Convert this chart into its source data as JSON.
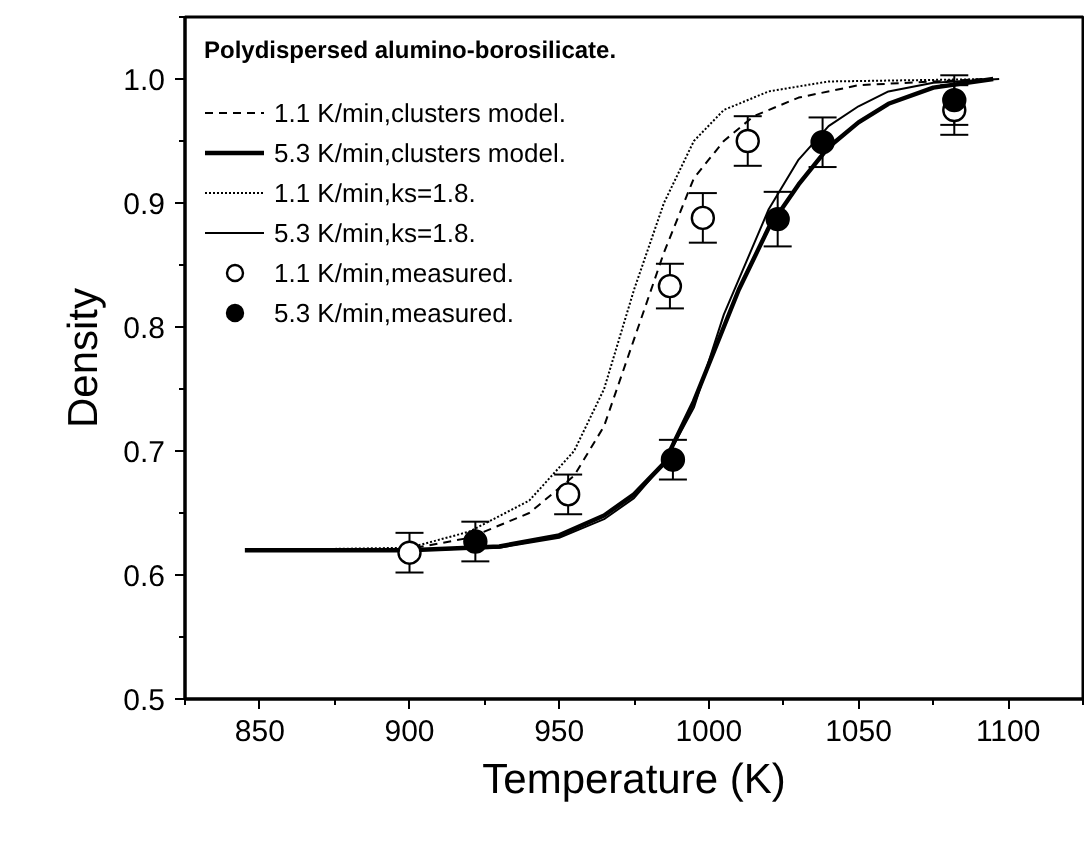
{
  "chart_data": {
    "type": "line",
    "xlabel": "Temperature (K)",
    "ylabel": "Density",
    "legend_title": "Polydispersed alumino-borosilicate.",
    "xlim": [
      825,
      1125
    ],
    "xticks": [
      850,
      900,
      950,
      1000,
      1050,
      1100
    ],
    "ylim": [
      0.5,
      1.05
    ],
    "yticks": [
      0.5,
      0.6,
      0.7,
      0.8,
      0.9,
      {
        "value": 1.0,
        "label": "1.0"
      }
    ],
    "grid": false,
    "legend": "top left",
    "series": [
      {
        "name": "1.1 K/min,clusters model.",
        "line_style": "dashed",
        "color": "#000000",
        "x": [
          846,
          900,
          920,
          940,
          955,
          965,
          975,
          985,
          995,
          1005,
          1015,
          1030,
          1050,
          1092
        ],
        "values": [
          0.62,
          0.621,
          0.63,
          0.65,
          0.68,
          0.72,
          0.79,
          0.86,
          0.92,
          0.95,
          0.97,
          0.985,
          0.995,
          1.0
        ]
      },
      {
        "name": "5.3 K/min,clusters model.",
        "line_style": "solid",
        "color": "#000000",
        "x": [
          845,
          900,
          930,
          950,
          965,
          975,
          985,
          995,
          1000,
          1005,
          1010,
          1020,
          1030,
          1040,
          1050,
          1060,
          1075,
          1095
        ],
        "values": [
          0.62,
          0.62,
          0.623,
          0.632,
          0.648,
          0.665,
          0.69,
          0.74,
          0.77,
          0.8,
          0.83,
          0.88,
          0.915,
          0.945,
          0.965,
          0.98,
          0.993,
          1.0
        ]
      },
      {
        "name": "1.1 K/min,ks=1.8.",
        "line_style": "dotted",
        "color": "#000000",
        "x": [
          847,
          900,
          920,
          940,
          955,
          965,
          975,
          985,
          995,
          1005,
          1020,
          1040,
          1095
        ],
        "values": [
          0.62,
          0.622,
          0.635,
          0.66,
          0.7,
          0.75,
          0.83,
          0.9,
          0.95,
          0.975,
          0.99,
          0.998,
          1.0
        ]
      },
      {
        "name": "5.3 K/min,ks=1.8.",
        "line_style": "solid",
        "color": "#000000",
        "x": [
          848,
          900,
          930,
          950,
          965,
          975,
          985,
          995,
          1005,
          1020,
          1030,
          1040,
          1050,
          1060,
          1075,
          1097
        ],
        "values": [
          0.62,
          0.62,
          0.622,
          0.63,
          0.645,
          0.662,
          0.69,
          0.735,
          0.81,
          0.895,
          0.935,
          0.962,
          0.978,
          0.99,
          0.997,
          1.0
        ]
      },
      {
        "name": "1.1 K/min,measured.",
        "type": "scatter",
        "marker": "circle",
        "color": "#000000",
        "x": [
          900,
          953,
          987,
          998,
          1013,
          1082
        ],
        "values": [
          0.618,
          0.665,
          0.833,
          0.888,
          0.95,
          0.975
        ],
        "errors": [
          0.016,
          0.016,
          0.018,
          0.02,
          0.02,
          0.02
        ]
      },
      {
        "name": "5.3 K/min,measured.",
        "type": "scatter",
        "marker": "circle",
        "color": "#000000",
        "x": [
          922,
          988,
          1023,
          1038,
          1082
        ],
        "values": [
          0.627,
          0.693,
          0.887,
          0.949,
          0.983
        ],
        "errors": [
          0.016,
          0.016,
          0.022,
          0.02,
          0.02
        ]
      }
    ]
  }
}
